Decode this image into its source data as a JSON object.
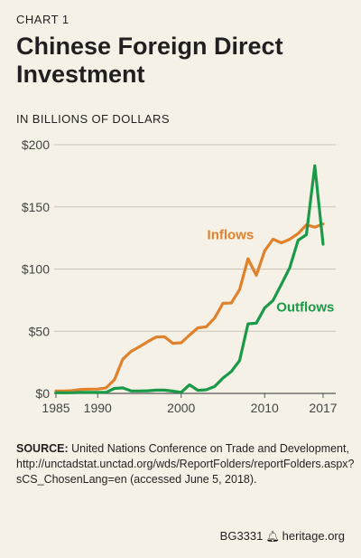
{
  "header": {
    "kicker": "CHART 1",
    "title": "Chinese Foreign Direct Investment",
    "unit": "IN BILLIONS OF DOLLARS"
  },
  "chart_data": {
    "type": "line",
    "title": "Chinese Foreign Direct Investment",
    "ylabel": "IN BILLIONS OF DOLLARS",
    "xlim": [
      1985,
      2017
    ],
    "ylim": [
      0,
      200
    ],
    "xticks": [
      1985,
      1990,
      2000,
      2010,
      2017
    ],
    "xtick_labels": [
      "1985",
      "1990",
      "2000",
      "2010",
      "2017"
    ],
    "yticks": [
      0,
      50,
      100,
      150,
      200
    ],
    "ytick_labels": [
      "$0",
      "$50",
      "$100",
      "$150",
      "$200"
    ],
    "grid": true,
    "colors": {
      "inflows": "#e0812b",
      "outflows": "#1a9a48"
    },
    "x": [
      1985,
      1986,
      1987,
      1988,
      1989,
      1990,
      1991,
      1992,
      1993,
      1994,
      1995,
      1996,
      1997,
      1998,
      1999,
      2000,
      2001,
      2002,
      2003,
      2004,
      2005,
      2006,
      2007,
      2008,
      2009,
      2010,
      2011,
      2012,
      2013,
      2014,
      2015,
      2016,
      2017
    ],
    "series": [
      {
        "name": "Inflows",
        "values": [
          2,
          2,
          2.3,
          3.2,
          3.4,
          3.5,
          4.4,
          11,
          27.5,
          33.8,
          37.5,
          41.7,
          45.3,
          45.5,
          40.3,
          40.7,
          46.9,
          52.7,
          53.5,
          60.6,
          72.4,
          72.7,
          83.5,
          108.3,
          95,
          114.7,
          124,
          121.1,
          123.9,
          128.5,
          135.6,
          133.7,
          136.3
        ]
      },
      {
        "name": "Outflows",
        "values": [
          0.6,
          0.5,
          0.6,
          0.9,
          0.8,
          0.8,
          0.9,
          4,
          4.4,
          2,
          2,
          2.1,
          2.6,
          2.6,
          1.8,
          0.9,
          6.9,
          2.5,
          2.9,
          5.5,
          12.3,
          17.6,
          26.5,
          55.9,
          56.5,
          68.8,
          74.7,
          87.8,
          101,
          123.1,
          127.6,
          183.1,
          120
        ]
      }
    ]
  },
  "source": {
    "label": "SOURCE:",
    "text": " United Nations Conference on Trade and Development, http://unctadstat.unctad.org/wds/ReportFolders/reportFolders.aspx?sCS_ChosenLang=en (accessed June 5, 2018)."
  },
  "footer": {
    "code": "BG3331",
    "bell_icon": "bell-icon",
    "site": "heritage.org"
  }
}
